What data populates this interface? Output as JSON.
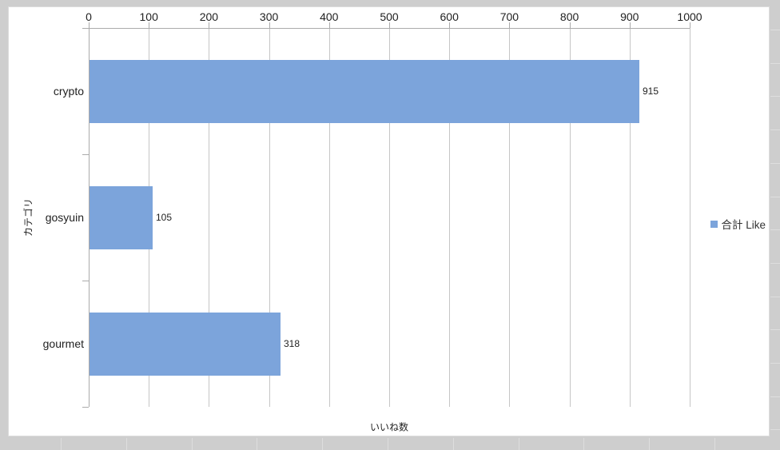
{
  "chart_data": {
    "type": "bar",
    "orientation": "horizontal",
    "title": "",
    "categories": [
      "crypto",
      "gosyuin",
      "gourmet"
    ],
    "series": [
      {
        "name": "合計 Like",
        "values": [
          915,
          105,
          318
        ]
      }
    ],
    "data_labels": [
      "915",
      "105",
      "318"
    ],
    "xlabel": "いいね数",
    "ylabel": "カテゴリ",
    "xlim": [
      0,
      1000
    ],
    "xticks": [
      0,
      100,
      200,
      300,
      400,
      500,
      600,
      700,
      800,
      900,
      1000
    ],
    "grid": true,
    "legend_position": "right",
    "colors": {
      "bar": "#7CA4DB",
      "gridline": "#C6C6C6",
      "axis": "#ABABAB",
      "text": "#1F1F1F",
      "chart_background": "#FFFFFF",
      "sheet_background": "#CECECE"
    }
  },
  "legend": {
    "items": [
      {
        "label": "合計 Like",
        "color": "#7CA4DB"
      }
    ]
  }
}
